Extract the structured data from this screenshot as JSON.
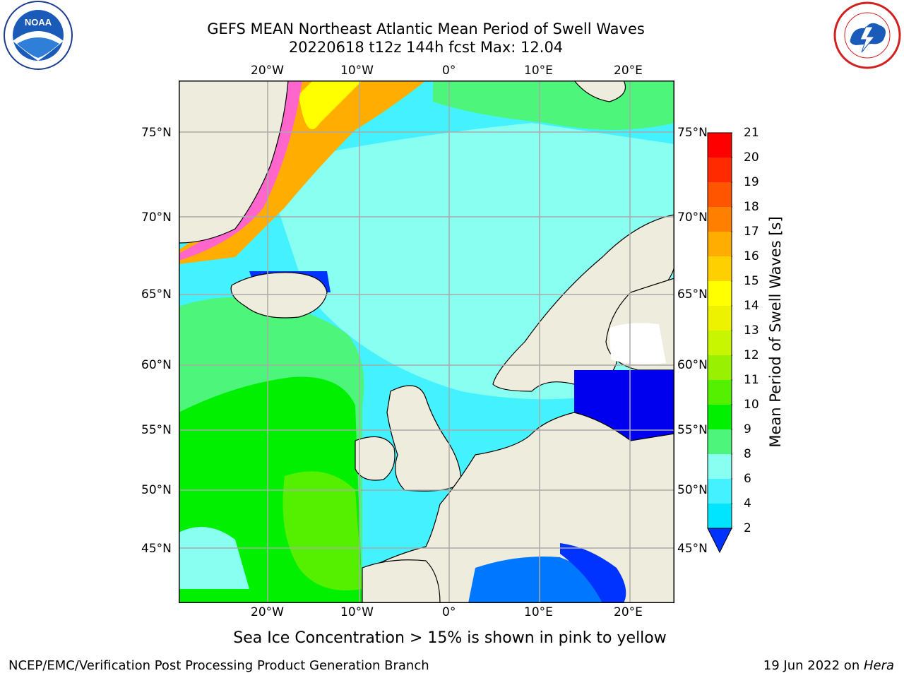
{
  "title": {
    "line1": "GEFS MEAN Northeast Atlantic Mean Period of Swell Waves",
    "line2": "20220618 t12z 144h fcst   Max: 12.04"
  },
  "logos": {
    "left": {
      "text": "NOAA",
      "icon": "noaa-logo-icon",
      "ring_text": "NATIONAL OCEANIC AND ATMOSPHERIC ADMINISTRATION · U.S. DEPARTMENT OF COMMERCE"
    },
    "right": {
      "icon": "nws-logo-icon",
      "ring_text": "NATIONAL WEATHER SERVICE"
    }
  },
  "map": {
    "lon_labels": [
      "20°W",
      "10°W",
      "0°",
      "10°E",
      "20°E"
    ],
    "lat_labels": [
      "75°N",
      "70°N",
      "65°N",
      "60°N",
      "55°N",
      "50°N",
      "45°N"
    ],
    "region": "Northeast Atlantic"
  },
  "colorbar": {
    "title": "Mean Period of Swell Waves [s]",
    "ticks": [
      "2",
      "4",
      "6",
      "8",
      "9",
      "10",
      "11",
      "12",
      "13",
      "14",
      "15",
      "16",
      "17",
      "18",
      "19",
      "20",
      "21"
    ],
    "colors": [
      "#0033ff",
      "#0077ff",
      "#00e5ff",
      "#44f2ff",
      "#88fff0",
      "#4df57a",
      "#00f000",
      "#55f000",
      "#99f000",
      "#c8f500",
      "#ecf200",
      "#ffff00",
      "#ffd000",
      "#ffae00",
      "#ff8000",
      "#ff5500",
      "#ff2a00",
      "#ff0000"
    ]
  },
  "caption": "Sea Ice Concentration > 15% is shown in pink to yellow",
  "footer": {
    "left": "NCEP/EMC/Verification Post Processing Product Generation Branch",
    "right_prefix": "19 Jun 2022 on ",
    "right_machine": "Hera"
  }
}
